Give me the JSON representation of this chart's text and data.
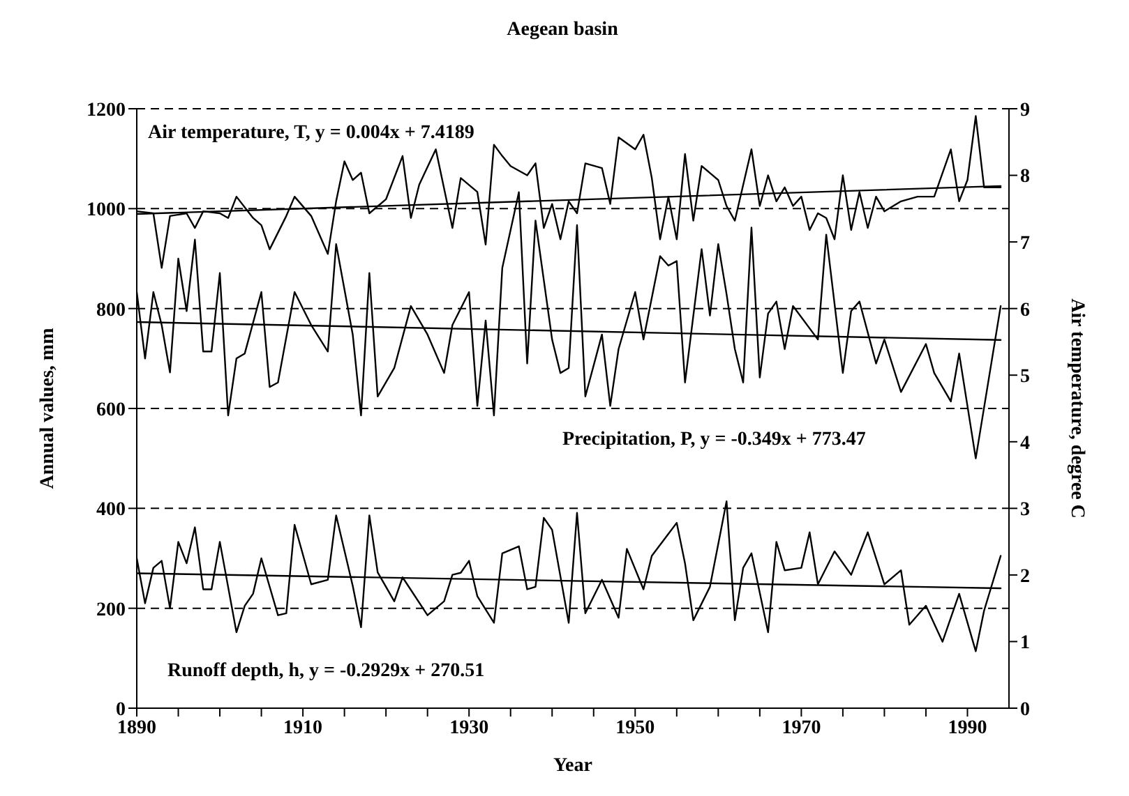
{
  "chart_data": {
    "type": "line",
    "title": "Aegean basin",
    "xlabel": "Year",
    "ylabel": "Annual values, mm",
    "y2label": "Air temperature, degree C",
    "annotations": [
      "Air temperature, T, y = 0.004x + 7.4189",
      "Precipitation, P, y = -0.349x + 773.47",
      "Runoff depth, h, y = -0.2929x + 270.51"
    ],
    "xlim": [
      1890,
      1995
    ],
    "xticks": [
      1890,
      {
        "value": 1895,
        "label": null
      },
      {
        "value": 1900,
        "label": null
      },
      {
        "value": 1905,
        "label": null
      },
      1910,
      {
        "value": 1915,
        "label": null
      },
      {
        "value": 1920,
        "label": null
      },
      {
        "value": 1925,
        "label": null
      },
      1930,
      {
        "value": 1935,
        "label": null
      },
      {
        "value": 1940,
        "label": null
      },
      {
        "value": 1945,
        "label": null
      },
      1950,
      {
        "value": 1955,
        "label": null
      },
      {
        "value": 1960,
        "label": null
      },
      {
        "value": 1965,
        "label": null
      },
      1970,
      {
        "value": 1975,
        "label": null
      },
      {
        "value": 1980,
        "label": null
      },
      {
        "value": 1985,
        "label": null
      },
      1990
    ],
    "ylim": [
      0,
      1200
    ],
    "yticks": [
      0,
      200,
      400,
      600,
      800,
      1000,
      1200
    ],
    "y2lim": [
      0,
      9
    ],
    "y2ticks": [
      0,
      1,
      2,
      3,
      4,
      5,
      6,
      7,
      8,
      9
    ],
    "grid": "y",
    "line_style": "solid",
    "marker": "none",
    "series": [
      {
        "color": "#000000",
        "axis": "y2",
        "x": [
          1890,
          1892,
          1893,
          1894,
          1896,
          1897,
          1898,
          1900,
          1901,
          1902,
          1904,
          1905,
          1906,
          1908,
          1909,
          1911,
          1913,
          1914,
          1915,
          1916,
          1917,
          1918,
          1920,
          1922,
          1923,
          1924,
          1926,
          1928,
          1929,
          1931,
          1932,
          1933,
          1934,
          1935,
          1937,
          1938,
          1939,
          1940,
          1941,
          1942,
          1943,
          1944,
          1946,
          1947,
          1948,
          1950,
          1951,
          1952,
          1953,
          1954,
          1955,
          1956,
          1957,
          1958,
          1960,
          1961,
          1962,
          1964,
          1965,
          1966,
          1967,
          1968,
          1969,
          1970,
          1971,
          1972,
          1973,
          1974,
          1975,
          1976,
          1977,
          1978,
          1979,
          1980,
          1982,
          1984,
          1986,
          1988,
          1989,
          1990,
          1991,
          1992,
          1994
        ],
        "values": [
          7.46,
          7.43,
          6.61,
          7.39,
          7.43,
          7.21,
          7.46,
          7.43,
          7.36,
          7.68,
          7.36,
          7.25,
          6.89,
          7.39,
          7.68,
          7.39,
          6.82,
          7.61,
          8.21,
          7.93,
          8.04,
          7.43,
          7.64,
          8.29,
          7.36,
          7.86,
          8.39,
          7.21,
          7.96,
          7.75,
          6.96,
          8.46,
          8.29,
          8.14,
          8.0,
          8.18,
          7.21,
          7.57,
          7.04,
          7.61,
          7.43,
          8.18,
          8.11,
          7.57,
          8.57,
          8.39,
          8.61,
          7.96,
          7.04,
          7.68,
          7.04,
          8.32,
          7.32,
          8.14,
          7.93,
          7.54,
          7.32,
          8.39,
          7.54,
          8.0,
          7.61,
          7.82,
          7.54,
          7.68,
          7.18,
          7.43,
          7.36,
          7.04,
          8.0,
          7.18,
          7.75,
          7.21,
          7.68,
          7.46,
          7.61,
          7.68,
          7.68,
          8.39,
          7.61,
          7.93,
          8.89,
          7.82,
          7.82
        ]
      },
      {
        "color": "#000000",
        "x": [
          1890,
          1891,
          1892,
          1893,
          1894,
          1895,
          1896,
          1897,
          1898,
          1899,
          1900,
          1901,
          1902,
          1903,
          1905,
          1906,
          1907,
          1909,
          1911,
          1913,
          1914,
          1916,
          1917,
          1918,
          1919,
          1921,
          1923,
          1925,
          1927,
          1928,
          1930,
          1931,
          1932,
          1933,
          1934,
          1936,
          1937,
          1938,
          1940,
          1941,
          1942,
          1943,
          1944,
          1946,
          1947,
          1948,
          1950,
          1951,
          1953,
          1954,
          1955,
          1956,
          1958,
          1959,
          1960,
          1961,
          1962,
          1963,
          1964,
          1965,
          1966,
          1967,
          1968,
          1969,
          1972,
          1973,
          1975,
          1976,
          1977,
          1979,
          1980,
          1982,
          1985,
          1986,
          1988,
          1989,
          1991,
          1994
        ],
        "values": [
          833,
          700,
          833,
          767,
          672,
          900,
          795,
          938,
          714,
          714,
          871,
          586,
          700,
          710,
          833,
          643,
          652,
          833,
          767,
          714,
          929,
          748,
          586,
          871,
          624,
          681,
          805,
          748,
          671,
          767,
          833,
          605,
          776,
          586,
          881,
          1033,
          690,
          976,
          738,
          671,
          681,
          967,
          624,
          748,
          605,
          719,
          833,
          738,
          905,
          886,
          895,
          652,
          919,
          786,
          929,
          829,
          719,
          652,
          962,
          662,
          790,
          814,
          719,
          805,
          738,
          948,
          671,
          795,
          814,
          690,
          738,
          633,
          729,
          671,
          614,
          710,
          500,
          805
        ]
      },
      {
        "color": "#000000",
        "x": [
          1890,
          1891,
          1892,
          1893,
          1894,
          1895,
          1896,
          1897,
          1898,
          1899,
          1900,
          1902,
          1903,
          1904,
          1905,
          1907,
          1908,
          1909,
          1911,
          1913,
          1914,
          1916,
          1917,
          1918,
          1919,
          1921,
          1922,
          1925,
          1927,
          1928,
          1929,
          1930,
          1931,
          1933,
          1934,
          1936,
          1937,
          1938,
          1939,
          1940,
          1942,
          1943,
          1944,
          1946,
          1948,
          1949,
          1951,
          1952,
          1955,
          1956,
          1957,
          1959,
          1961,
          1962,
          1963,
          1964,
          1966,
          1967,
          1968,
          1970,
          1971,
          1972,
          1974,
          1976,
          1978,
          1980,
          1982,
          1983,
          1985,
          1987,
          1989,
          1991,
          1992,
          1994
        ],
        "values": [
          300,
          210,
          281,
          295,
          200,
          333,
          290,
          362,
          238,
          238,
          333,
          152,
          205,
          229,
          300,
          186,
          190,
          367,
          248,
          257,
          386,
          245,
          162,
          386,
          272,
          214,
          262,
          186,
          214,
          267,
          271,
          295,
          224,
          171,
          310,
          324,
          238,
          243,
          381,
          357,
          171,
          391,
          190,
          257,
          181,
          319,
          238,
          305,
          371,
          290,
          176,
          243,
          414,
          176,
          281,
          310,
          152,
          333,
          276,
          281,
          352,
          248,
          314,
          267,
          352,
          248,
          276,
          167,
          205,
          133,
          229,
          114,
          195,
          305
        ]
      },
      {
        "type": "line",
        "color": "#000000",
        "axis": "y2",
        "x": [
          1890,
          1994
        ],
        "values": [
          7.42,
          7.84
        ]
      },
      {
        "type": "line",
        "color": "#000000",
        "x": [
          1890,
          1994
        ],
        "values": [
          773,
          737
        ]
      },
      {
        "type": "line",
        "color": "#000000",
        "x": [
          1890,
          1994
        ],
        "values": [
          270,
          240
        ]
      }
    ]
  }
}
